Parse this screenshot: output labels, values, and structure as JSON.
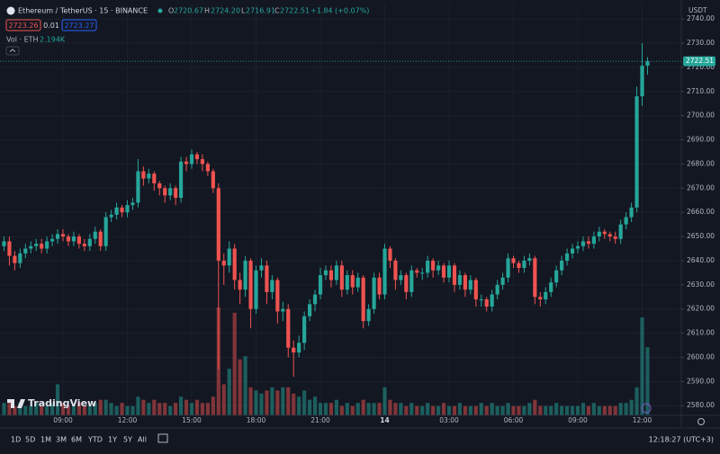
{
  "header": {
    "symbol": "Ethereum / TetherUS · 15 · BINANCE",
    "ohlc": [
      {
        "label": "O",
        "value": "2720.67"
      },
      {
        "label": "H",
        "value": "2724.20"
      },
      {
        "label": "L",
        "value": "2716.91"
      },
      {
        "label": "C",
        "value": "2722.51"
      }
    ],
    "change": "+1.84 (+0.07%)",
    "bid": "2723.26",
    "spread": "0.01",
    "ask": "2723.27",
    "volume_title": "Vol · ETH",
    "volume_value": "2.194K",
    "currency": "USDT",
    "logo": "TradingView"
  },
  "footer": {
    "ranges": [
      "1D",
      "5D",
      "1M",
      "3M",
      "6M",
      "YTD",
      "1Y",
      "5Y",
      "All"
    ],
    "clock": "12:18:27 (UTC+3)"
  },
  "chart_data": {
    "type": "candlestick",
    "up_color": "#26a69a",
    "down_color": "#ef5350",
    "ylim": [
      2576,
      2746
    ],
    "yticks": [
      {
        "value": 2580,
        "label": "2580.00"
      },
      {
        "value": 2590,
        "label": "2590.00"
      },
      {
        "value": 2600,
        "label": "2600.00"
      },
      {
        "value": 2610,
        "label": "2610.00"
      },
      {
        "value": 2620,
        "label": "2620.00"
      },
      {
        "value": 2630,
        "label": "2630.00"
      },
      {
        "value": 2640,
        "label": "2640.00"
      },
      {
        "value": 2650,
        "label": "2650.00"
      },
      {
        "value": 2660,
        "label": "2660.00"
      },
      {
        "value": 2670,
        "label": "2670.00"
      },
      {
        "value": 2680,
        "label": "2680.00"
      },
      {
        "value": 2690,
        "label": "2690.00"
      },
      {
        "value": 2700,
        "label": "2700.00"
      },
      {
        "value": 2710,
        "label": "2710.00"
      },
      {
        "value": 2720,
        "label": "2720.00"
      },
      {
        "value": 2730,
        "label": "2730.00"
      },
      {
        "value": 2740,
        "label": "2740.00"
      }
    ],
    "xlim": [
      -0.75,
      126.3
    ],
    "xticks": [
      {
        "value": 11,
        "label": "09:00"
      },
      {
        "value": 23,
        "label": "12:00"
      },
      {
        "value": 35,
        "label": "15:00"
      },
      {
        "value": 47,
        "label": "18:00"
      },
      {
        "value": 59,
        "label": "21:00"
      },
      {
        "value": 71,
        "label": "14"
      },
      {
        "value": 83,
        "label": "03:00"
      },
      {
        "value": 95,
        "label": "06:00"
      },
      {
        "value": 107,
        "label": "09:00"
      },
      {
        "value": 119,
        "label": "12:00"
      }
    ],
    "last_price": {
      "value": 2722.51,
      "label": "2722.51"
    },
    "open": [
      2646,
      2648,
      2642,
      2639,
      2643,
      2645,
      2646,
      2647,
      2645,
      2648,
      2649,
      2651,
      2650,
      2648,
      2650,
      2647,
      2646,
      2649,
      2652,
      2646,
      2658,
      2659,
      2662,
      2660,
      2663,
      2664,
      2677,
      2674,
      2676,
      2672,
      2670,
      2667,
      2670,
      2666,
      2681,
      2680,
      2684,
      2682,
      2680,
      2677,
      2670,
      2640,
      2638,
      2645,
      2632,
      2628,
      2640,
      2620,
      2636,
      2638,
      2627,
      2632,
      2619,
      2620,
      2604,
      2602,
      2606,
      2617,
      2622,
      2626,
      2634,
      2636,
      2632,
      2638,
      2628,
      2634,
      2629,
      2633,
      2615,
      2620,
      2633,
      2626,
      2645,
      2640,
      2632,
      2634,
      2627,
      2636,
      2635,
      2635,
      2640,
      2636,
      2638,
      2633,
      2638,
      2630,
      2634,
      2628,
      2632,
      2624,
      2624,
      2621,
      2626,
      2630,
      2633,
      2641,
      2639,
      2637,
      2640,
      2641,
      2625,
      2624,
      2627,
      2631,
      2636,
      2640,
      2643,
      2645,
      2646,
      2648,
      2647,
      2650,
      2652,
      2651,
      2650,
      2649,
      2655,
      2658,
      2662,
      2708,
      2720.67
    ],
    "high": [
      2650,
      2650,
      2644,
      2645,
      2647,
      2648,
      2649,
      2649,
      2650,
      2651,
      2653,
      2653,
      2651,
      2652,
      2651,
      2649,
      2651,
      2654,
      2653,
      2660,
      2661,
      2664,
      2663,
      2665,
      2666,
      2682,
      2679,
      2678,
      2677,
      2673,
      2671,
      2672,
      2671,
      2683,
      2683,
      2686,
      2685,
      2684,
      2681,
      2678,
      2672,
      2643,
      2648,
      2647,
      2635,
      2642,
      2641,
      2638,
      2641,
      2640,
      2634,
      2633,
      2623,
      2622,
      2607,
      2609,
      2619,
      2624,
      2628,
      2637,
      2638,
      2638,
      2640,
      2640,
      2636,
      2636,
      2635,
      2634,
      2622,
      2635,
      2635,
      2647,
      2646,
      2641,
      2636,
      2635,
      2638,
      2637,
      2637,
      2642,
      2641,
      2640,
      2639,
      2640,
      2639,
      2636,
      2635,
      2634,
      2633,
      2626,
      2625,
      2628,
      2632,
      2635,
      2643,
      2642,
      2640,
      2642,
      2643,
      2642,
      2627,
      2629,
      2633,
      2638,
      2642,
      2645,
      2647,
      2648,
      2650,
      2650,
      2652,
      2654,
      2653,
      2652,
      2652,
      2657,
      2660,
      2664,
      2712,
      2730,
      2724.2
    ],
    "low": [
      2644,
      2638,
      2636,
      2637,
      2641,
      2643,
      2644,
      2643,
      2643,
      2646,
      2647,
      2648,
      2646,
      2646,
      2645,
      2644,
      2644,
      2647,
      2644,
      2644,
      2656,
      2657,
      2658,
      2658,
      2661,
      2662,
      2671,
      2672,
      2669,
      2667,
      2664,
      2665,
      2663,
      2664,
      2677,
      2678,
      2680,
      2677,
      2675,
      2668,
      2595,
      2630,
      2635,
      2628,
      2622,
      2625,
      2612,
      2618,
      2633,
      2622,
      2624,
      2614,
      2615,
      2600,
      2592,
      2600,
      2603,
      2615,
      2619,
      2624,
      2632,
      2629,
      2630,
      2625,
      2626,
      2626,
      2627,
      2612,
      2613,
      2618,
      2624,
      2624,
      2637,
      2628,
      2630,
      2624,
      2625,
      2633,
      2632,
      2633,
      2633,
      2634,
      2631,
      2631,
      2627,
      2628,
      2625,
      2626,
      2621,
      2621,
      2619,
      2619,
      2624,
      2628,
      2631,
      2637,
      2635,
      2635,
      2638,
      2622,
      2621,
      2622,
      2625,
      2629,
      2634,
      2638,
      2641,
      2643,
      2644,
      2645,
      2645,
      2648,
      2649,
      2648,
      2647,
      2647,
      2653,
      2656,
      2660,
      2704,
      2716.91
    ],
    "close": [
      2648,
      2642,
      2639,
      2643,
      2645,
      2646,
      2647,
      2645,
      2648,
      2649,
      2651,
      2650,
      2648,
      2650,
      2647,
      2646,
      2649,
      2652,
      2646,
      2658,
      2659,
      2662,
      2660,
      2663,
      2664,
      2677,
      2674,
      2676,
      2672,
      2670,
      2667,
      2670,
      2666,
      2681,
      2680,
      2684,
      2682,
      2680,
      2677,
      2670,
      2640,
      2638,
      2645,
      2632,
      2628,
      2640,
      2620,
      2636,
      2638,
      2627,
      2632,
      2619,
      2620,
      2604,
      2602,
      2606,
      2617,
      2622,
      2626,
      2634,
      2636,
      2632,
      2638,
      2628,
      2634,
      2629,
      2633,
      2615,
      2620,
      2633,
      2626,
      2645,
      2640,
      2632,
      2634,
      2627,
      2636,
      2635,
      2635,
      2640,
      2636,
      2638,
      2633,
      2638,
      2630,
      2634,
      2628,
      2632,
      2624,
      2624,
      2621,
      2626,
      2630,
      2633,
      2641,
      2639,
      2637,
      2640,
      2641,
      2625,
      2624,
      2627,
      2631,
      2636,
      2640,
      2643,
      2645,
      2646,
      2648,
      2647,
      2650,
      2652,
      2651,
      2650,
      2649,
      2655,
      2658,
      2662,
      2708,
      2720.67,
      2722.51
    ],
    "volume": [
      0.4,
      0.5,
      0.3,
      0.4,
      0.3,
      0.3,
      0.4,
      0.3,
      0.3,
      0.4,
      1.0,
      0.4,
      0.3,
      0.3,
      0.4,
      0.3,
      0.3,
      0.4,
      0.5,
      0.5,
      0.4,
      0.3,
      0.4,
      0.3,
      0.3,
      0.6,
      0.5,
      0.4,
      0.5,
      0.4,
      0.4,
      0.3,
      0.4,
      0.6,
      0.5,
      0.4,
      0.5,
      0.4,
      0.4,
      0.6,
      3.47,
      1.0,
      1.5,
      3.3,
      1.8,
      1.9,
      0.9,
      0.8,
      0.7,
      0.8,
      0.9,
      0.8,
      0.9,
      0.9,
      0.7,
      0.6,
      0.8,
      0.5,
      0.6,
      0.4,
      0.4,
      0.4,
      0.5,
      0.3,
      0.4,
      0.3,
      0.4,
      0.5,
      0.4,
      0.4,
      0.4,
      0.9,
      0.5,
      0.4,
      0.4,
      0.3,
      0.4,
      0.3,
      0.3,
      0.4,
      0.3,
      0.3,
      0.4,
      0.3,
      0.3,
      0.4,
      0.3,
      0.3,
      0.3,
      0.4,
      0.3,
      0.4,
      0.3,
      0.3,
      0.4,
      0.3,
      0.3,
      0.3,
      0.4,
      0.5,
      0.3,
      0.3,
      0.3,
      0.4,
      0.3,
      0.3,
      0.3,
      0.3,
      0.4,
      0.3,
      0.4,
      0.3,
      0.3,
      0.3,
      0.3,
      0.4,
      0.4,
      0.5,
      0.9,
      3.15,
      2.194
    ]
  }
}
